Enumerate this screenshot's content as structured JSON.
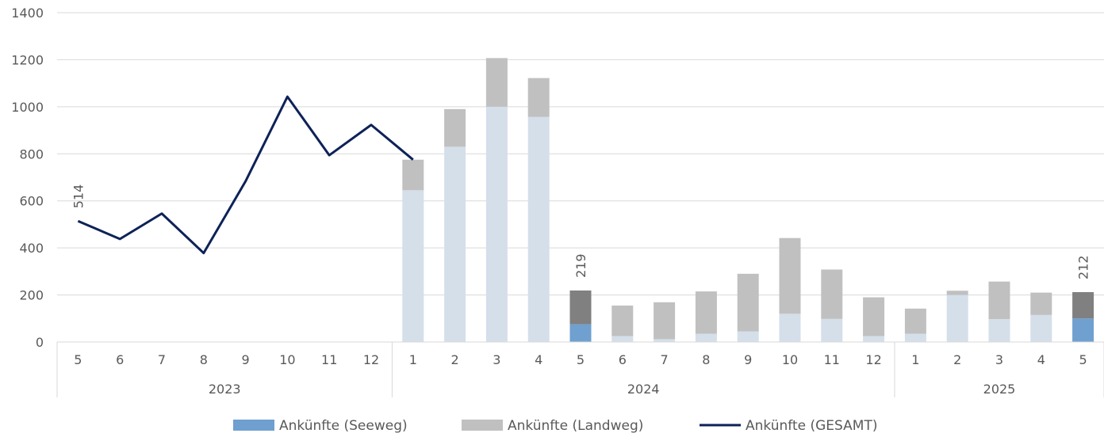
{
  "chart_data": {
    "type": "bar",
    "title": "",
    "xlabel": "",
    "ylabel": "",
    "ylim": [
      0,
      1400
    ],
    "yticks": [
      0,
      200,
      400,
      600,
      800,
      1000,
      1200,
      1400
    ],
    "grid": true,
    "legend_position": "bottom",
    "categories": [
      "5",
      "6",
      "7",
      "8",
      "9",
      "10",
      "11",
      "12",
      "1",
      "2",
      "3",
      "4",
      "5",
      "6",
      "7",
      "8",
      "9",
      "10",
      "11",
      "12",
      "1",
      "2",
      "3",
      "4",
      "5"
    ],
    "years": [
      {
        "label": "2023",
        "start": 0,
        "end": 7
      },
      {
        "label": "2024",
        "start": 8,
        "end": 19
      },
      {
        "label": "2025",
        "start": 20,
        "end": 24
      }
    ],
    "series": [
      {
        "name": "Ankünfte (Seeweg)",
        "type": "bar",
        "color": "#6FA0CF",
        "faded_color": "#D4DFEA",
        "values": [
          null,
          null,
          null,
          null,
          null,
          null,
          null,
          null,
          645,
          830,
          1000,
          957,
          75,
          25,
          12,
          35,
          45,
          120,
          98,
          25,
          35,
          200,
          97,
          115,
          100
        ]
      },
      {
        "name": "Ankünfte (Landweg)",
        "type": "bar",
        "color": "#C0C0C0",
        "highlight_color": "#808080",
        "values": [
          null,
          null,
          null,
          null,
          null,
          null,
          null,
          null,
          130,
          160,
          207,
          165,
          144,
          130,
          157,
          180,
          245,
          322,
          210,
          165,
          107,
          18,
          160,
          95,
          112
        ]
      },
      {
        "name": "Ankünfte (GESAMT)",
        "type": "line",
        "color": "#0D2257",
        "values": [
          514,
          438,
          546,
          378,
          683,
          1043,
          794,
          923,
          775,
          null,
          null,
          null,
          null,
          null,
          null,
          null,
          null,
          null,
          null,
          null,
          null,
          null,
          null,
          null,
          null
        ]
      }
    ],
    "highlight_indices": [
      12,
      24
    ],
    "data_labels": [
      {
        "index": 0,
        "value": "514"
      },
      {
        "index": 12,
        "value": "219"
      },
      {
        "index": 24,
        "value": "212"
      }
    ]
  }
}
